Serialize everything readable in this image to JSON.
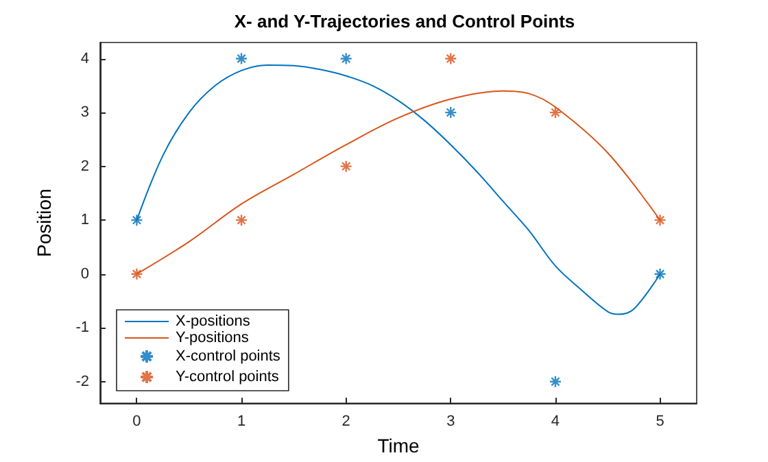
{
  "chart_data": {
    "type": "line",
    "title": "X- and Y-Trajectories and Control Points",
    "xlabel": "Time",
    "ylabel": "Position",
    "xlim": [
      -0.35,
      5.35
    ],
    "ylim": [
      -2.4,
      4.3
    ],
    "xticks": [
      0,
      1,
      2,
      3,
      4,
      5
    ],
    "yticks": [
      -2,
      -1,
      0,
      1,
      2,
      3,
      4
    ],
    "grid": false,
    "legend": "bottom left",
    "series": [
      {
        "name": "X-positions",
        "color": "#0072bd",
        "marker": "none",
        "x": [
          0,
          0.25,
          0.5,
          0.75,
          1,
          1.25,
          1.5,
          1.75,
          2,
          2.25,
          2.5,
          2.75,
          3,
          3.25,
          3.5,
          3.75,
          4,
          4.25,
          4.5,
          4.6,
          4.75,
          5
        ],
        "values": [
          1,
          2.2,
          3.0,
          3.5,
          3.78,
          3.88,
          3.87,
          3.8,
          3.68,
          3.5,
          3.22,
          2.85,
          2.4,
          1.9,
          1.35,
          0.8,
          0.15,
          -0.3,
          -0.7,
          -0.75,
          -0.65,
          0
        ]
      },
      {
        "name": "Y-positions",
        "color": "#d95319",
        "marker": "none",
        "x": [
          0,
          0.5,
          1,
          1.5,
          2,
          2.5,
          3,
          3.5,
          3.75,
          4,
          4.5,
          5
        ],
        "values": [
          0,
          0.6,
          1.3,
          1.85,
          2.4,
          2.9,
          3.25,
          3.4,
          3.35,
          3.1,
          2.25,
          1
        ]
      },
      {
        "name": "X-control points",
        "type": "scatter",
        "color": "#0072bd",
        "marker": "cross",
        "x": [
          0,
          1,
          2,
          3,
          4,
          5
        ],
        "values": [
          1,
          4,
          4,
          3,
          -2,
          0
        ]
      },
      {
        "name": "Y-control points",
        "type": "scatter",
        "color": "#d95319",
        "marker": "cross",
        "x": [
          0,
          1,
          2,
          3,
          4,
          5
        ],
        "values": [
          0,
          1,
          2,
          4,
          3,
          1
        ]
      }
    ]
  }
}
